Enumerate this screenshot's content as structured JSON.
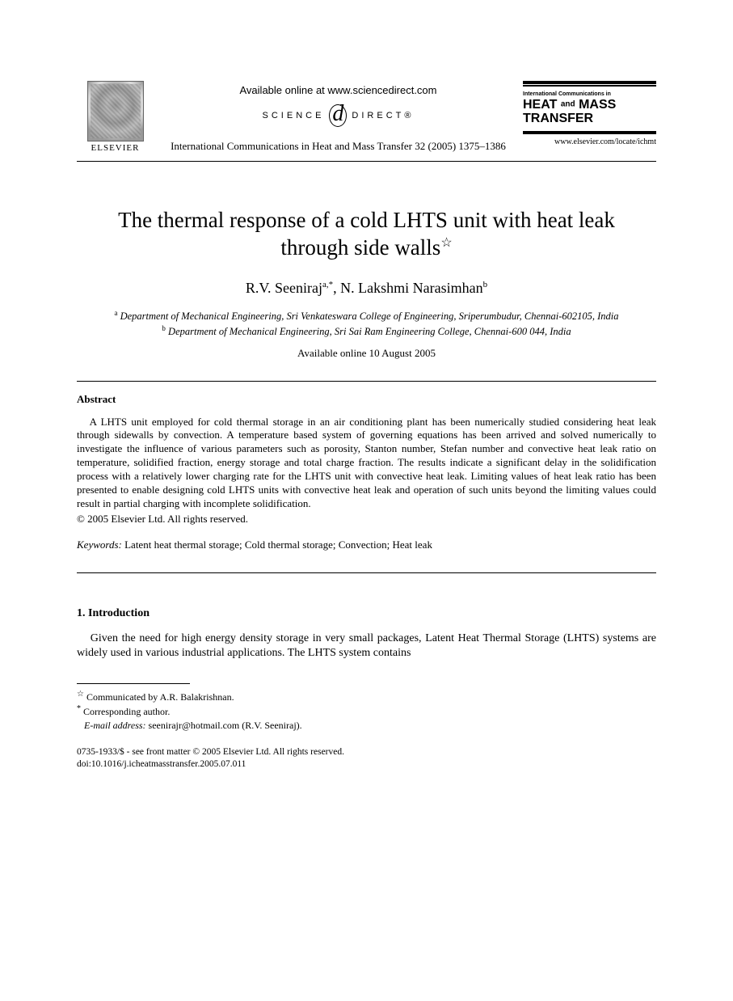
{
  "header": {
    "publisher": "ELSEVIER",
    "available_online_text": "Available online at www.sciencedirect.com",
    "sd_left": "SCIENCE",
    "sd_d": "d",
    "sd_right": "DIRECT®",
    "journal_cite": "International Communications in Heat and Mass Transfer 32 (2005) 1375–1386",
    "jbox_small": "International Communications in",
    "jbox_line1": "HEAT",
    "jbox_and": "and",
    "jbox_line1b": "MASS",
    "jbox_line2": "TRANSFER",
    "journal_url": "www.elsevier.com/locate/ichmt"
  },
  "title": "The thermal response of a cold LHTS unit with heat leak through side walls",
  "title_star": "☆",
  "authors": {
    "a1_name": "R.V. Seeniraj",
    "a1_sup": "a,",
    "a1_corr": "*",
    "sep": ", ",
    "a2_name": "N. Lakshmi Narasimhan",
    "a2_sup": "b"
  },
  "affiliations": {
    "a_sup": "a",
    "a_text": " Department of Mechanical Engineering, Sri Venkateswara College of Engineering, Sriperumbudur, Chennai-602105, India",
    "b_sup": "b",
    "b_text": " Department of Mechanical Engineering, Sri Sai Ram Engineering College, Chennai-600 044, India"
  },
  "available_date": "Available online 10 August 2005",
  "abstract_label": "Abstract",
  "abstract_text": "A LHTS unit employed for cold thermal storage in an air conditioning plant has been numerically studied considering heat leak through sidewalls by convection. A temperature based system of governing equations has been arrived and solved numerically to investigate the influence of various parameters such as porosity, Stanton number, Stefan number and convective heat leak ratio on temperature, solidified fraction, energy storage and total charge fraction. The results indicate a significant delay in the solidification process with a relatively lower charging rate for the LHTS unit with convective heat leak. Limiting values of heat leak ratio has been presented to enable designing cold LHTS units with convective heat leak and operation of such units beyond the limiting values could result in partial charging with incomplete solidification.",
  "copyright": "© 2005 Elsevier Ltd. All rights reserved.",
  "keywords_label": "Keywords:",
  "keywords_text": " Latent heat thermal storage; Cold thermal storage; Convection; Heat leak",
  "intro_label": "1. Introduction",
  "intro_text": "Given the need for high energy density storage in very small packages, Latent Heat Thermal Storage (LHTS) systems are widely used in various industrial applications. The LHTS system contains",
  "footnotes": {
    "star": "☆",
    "star_text": " Communicated by A.R. Balakrishnan.",
    "corr": "*",
    "corr_text": " Corresponding author.",
    "email_label": "E-mail address:",
    "email": " seenirajr@hotmail.com (R.V. Seeniraj)."
  },
  "footer": {
    "line1": "0735-1933/$ - see front matter © 2005 Elsevier Ltd. All rights reserved.",
    "line2": "doi:10.1016/j.icheatmasstransfer.2005.07.011"
  },
  "colors": {
    "text": "#000000",
    "background": "#ffffff",
    "rule": "#000000"
  },
  "typography": {
    "title_fontsize_pt": 20,
    "author_fontsize_pt": 14,
    "body_fontsize_pt": 10,
    "font_family": "Times New Roman"
  }
}
